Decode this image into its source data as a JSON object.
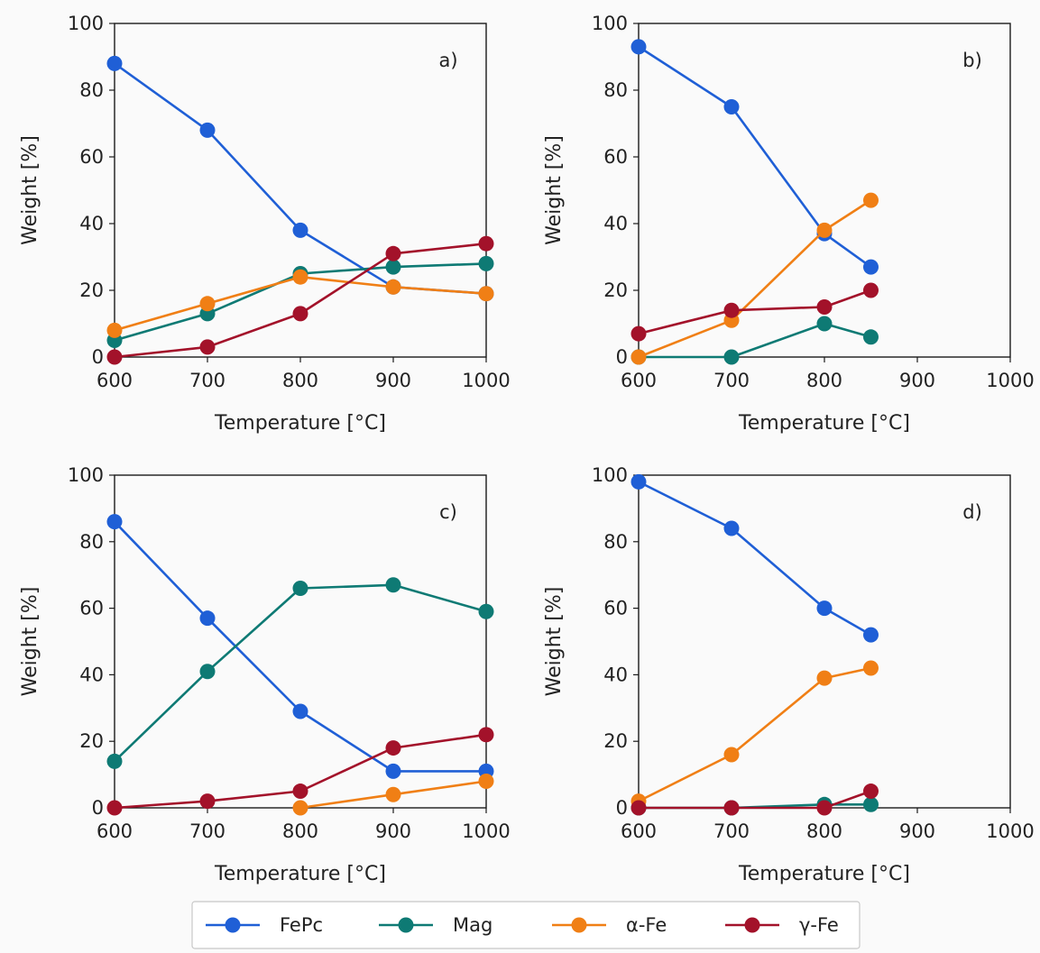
{
  "chart_data": [
    {
      "type": "line",
      "panel_label": "a)",
      "xlabel": "Temperature [°C]",
      "ylabel": "Weight [%]",
      "xlim": [
        600,
        1000
      ],
      "ylim": [
        0,
        100
      ],
      "xticks": [
        600,
        700,
        800,
        900,
        1000
      ],
      "yticks": [
        0,
        20,
        40,
        60,
        80,
        100
      ],
      "grid": false,
      "series": [
        {
          "name": "FePc",
          "color": "#1f5fd6",
          "points": [
            [
              600,
              88
            ],
            [
              700,
              68
            ],
            [
              800,
              38
            ],
            [
              900,
              21
            ],
            [
              1000,
              19
            ]
          ]
        },
        {
          "name": "Mag",
          "color": "#0e7a74",
          "points": [
            [
              600,
              5
            ],
            [
              700,
              13
            ],
            [
              800,
              25
            ],
            [
              900,
              27
            ],
            [
              1000,
              28
            ]
          ]
        },
        {
          "name": "α-Fe",
          "color": "#f07f15",
          "points": [
            [
              600,
              8
            ],
            [
              700,
              16
            ],
            [
              800,
              24
            ],
            [
              900,
              21
            ],
            [
              1000,
              19
            ]
          ]
        },
        {
          "name": "γ-Fe",
          "color": "#a3122a",
          "points": [
            [
              600,
              0
            ],
            [
              700,
              3
            ],
            [
              800,
              13
            ],
            [
              900,
              31
            ],
            [
              1000,
              34
            ]
          ]
        }
      ]
    },
    {
      "type": "line",
      "panel_label": "b)",
      "xlabel": "Temperature [°C]",
      "ylabel": "Weight [%]",
      "xlim": [
        600,
        1000
      ],
      "ylim": [
        0,
        100
      ],
      "xticks": [
        600,
        700,
        800,
        900,
        1000
      ],
      "yticks": [
        0,
        20,
        40,
        60,
        80,
        100
      ],
      "grid": false,
      "series": [
        {
          "name": "FePc",
          "color": "#1f5fd6",
          "points": [
            [
              600,
              93
            ],
            [
              700,
              75
            ],
            [
              800,
              37
            ],
            [
              850,
              27
            ]
          ]
        },
        {
          "name": "Mag",
          "color": "#0e7a74",
          "points": [
            [
              600,
              0
            ],
            [
              700,
              0
            ],
            [
              800,
              10
            ],
            [
              850,
              6
            ]
          ]
        },
        {
          "name": "α-Fe",
          "color": "#f07f15",
          "points": [
            [
              600,
              0
            ],
            [
              700,
              11
            ],
            [
              800,
              38
            ],
            [
              850,
              47
            ]
          ]
        },
        {
          "name": "γ-Fe",
          "color": "#a3122a",
          "points": [
            [
              600,
              7
            ],
            [
              700,
              14
            ],
            [
              800,
              15
            ],
            [
              850,
              20
            ]
          ]
        }
      ]
    },
    {
      "type": "line",
      "panel_label": "c)",
      "xlabel": "Temperature [°C]",
      "ylabel": "Weight [%]",
      "xlim": [
        600,
        1000
      ],
      "ylim": [
        0,
        100
      ],
      "xticks": [
        600,
        700,
        800,
        900,
        1000
      ],
      "yticks": [
        0,
        20,
        40,
        60,
        80,
        100
      ],
      "grid": false,
      "series": [
        {
          "name": "FePc",
          "color": "#1f5fd6",
          "points": [
            [
              600,
              86
            ],
            [
              700,
              57
            ],
            [
              800,
              29
            ],
            [
              900,
              11
            ],
            [
              1000,
              11
            ]
          ]
        },
        {
          "name": "Mag",
          "color": "#0e7a74",
          "points": [
            [
              600,
              14
            ],
            [
              700,
              41
            ],
            [
              800,
              66
            ],
            [
              900,
              67
            ],
            [
              1000,
              59
            ]
          ]
        },
        {
          "name": "α-Fe",
          "color": "#f07f15",
          "points": [
            [
              800,
              0
            ],
            [
              900,
              4
            ],
            [
              1000,
              8
            ]
          ]
        },
        {
          "name": "γ-Fe",
          "color": "#a3122a",
          "points": [
            [
              600,
              0
            ],
            [
              700,
              2
            ],
            [
              800,
              5
            ],
            [
              900,
              18
            ],
            [
              1000,
              22
            ]
          ]
        }
      ]
    },
    {
      "type": "line",
      "panel_label": "d)",
      "xlabel": "Temperature [°C]",
      "ylabel": "Weight [%]",
      "xlim": [
        600,
        1000
      ],
      "ylim": [
        0,
        100
      ],
      "xticks": [
        600,
        700,
        800,
        900,
        1000
      ],
      "yticks": [
        0,
        20,
        40,
        60,
        80,
        100
      ],
      "grid": false,
      "series": [
        {
          "name": "FePc",
          "color": "#1f5fd6",
          "points": [
            [
              600,
              98
            ],
            [
              700,
              84
            ],
            [
              800,
              60
            ],
            [
              850,
              52
            ]
          ]
        },
        {
          "name": "Mag",
          "color": "#0e7a74",
          "points": [
            [
              600,
              0
            ],
            [
              700,
              0
            ],
            [
              800,
              1
            ],
            [
              850,
              1
            ]
          ]
        },
        {
          "name": "α-Fe",
          "color": "#f07f15",
          "points": [
            [
              600,
              2
            ],
            [
              700,
              16
            ],
            [
              800,
              39
            ],
            [
              850,
              42
            ]
          ]
        },
        {
          "name": "γ-Fe",
          "color": "#a3122a",
          "points": [
            [
              600,
              0
            ],
            [
              700,
              0
            ],
            [
              800,
              0
            ],
            [
              850,
              5
            ]
          ]
        }
      ]
    }
  ],
  "legend": {
    "placement": "bottom-center",
    "entries": [
      {
        "name": "FePc",
        "color": "#1f5fd6"
      },
      {
        "name": "Mag",
        "color": "#0e7a74"
      },
      {
        "name": "α-Fe",
        "color": "#f07f15"
      },
      {
        "name": "γ-Fe",
        "color": "#a3122a"
      }
    ]
  }
}
